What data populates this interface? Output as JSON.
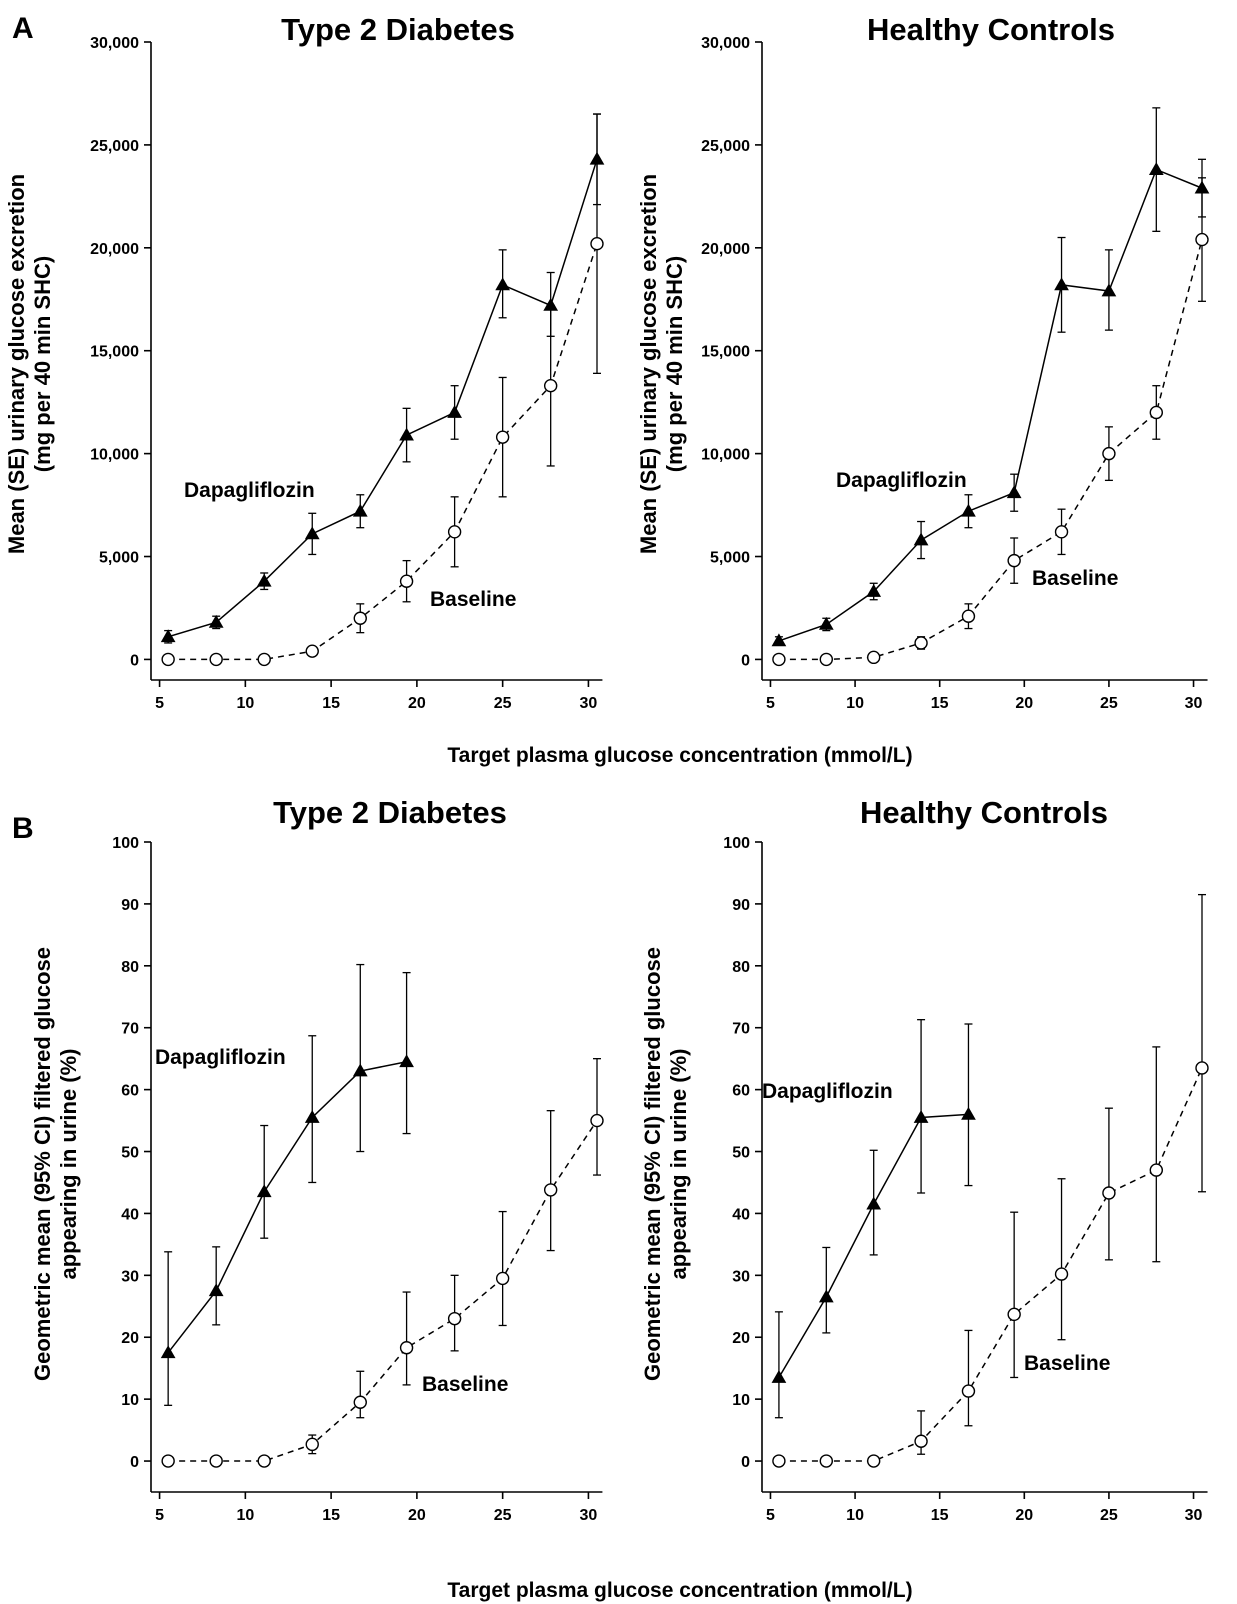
{
  "figure": {
    "panelA_label": "A",
    "panelB_label": "B",
    "xlabel_A": "Target plasma glucose concentration (mmol/L)",
    "xlabel_B": "Target plasma glucose concentration (mmol/L)",
    "ylabel_A_line1": "Mean (SE) urinary glucose excretion",
    "ylabel_A_line2": "(mg per 40 min SHC)",
    "ylabel_B_line1": "Geometric mean (95% CI) filtered glucose",
    "ylabel_B_line2": "appearing in urine (%)"
  },
  "chart_data": [
    {
      "id": "A-left",
      "type": "line",
      "title": "Type 2 Diabetes",
      "xlabel": "Target plasma glucose concentration (mmol/L)",
      "ylabel": "Mean (SE) urinary glucose excretion (mg per 40 min SHC)",
      "xlim": [
        4.5,
        30.5
      ],
      "ylim": [
        -1000,
        30000
      ],
      "xticks": [
        5,
        10,
        15,
        20,
        25,
        30
      ],
      "yticks": [
        0,
        5000,
        10000,
        15000,
        20000,
        25000,
        30000
      ],
      "ytick_labels": [
        "0",
        "5,000",
        "10,000",
        "15,000",
        "20,000",
        "25,000",
        "30,000"
      ],
      "series": [
        {
          "name": "Dapagliflozin",
          "marker": "triangle",
          "dash": "solid",
          "x": [
            5.5,
            8.3,
            11.1,
            13.9,
            16.7,
            19.4,
            22.2,
            25.0,
            27.8,
            30.5
          ],
          "y": [
            1100,
            1800,
            3800,
            6100,
            7200,
            10900,
            12000,
            18200,
            17200,
            24300
          ],
          "err": [
            [
              300,
              300
            ],
            [
              300,
              300
            ],
            [
              400,
              400
            ],
            [
              1000,
              1000
            ],
            [
              800,
              800
            ],
            [
              1300,
              1300
            ],
            [
              1300,
              1300
            ],
            [
              1600,
              1700
            ],
            [
              1500,
              1600
            ],
            [
              2200,
              2200
            ]
          ]
        },
        {
          "name": "Baseline",
          "marker": "circle",
          "dash": "dashed",
          "x": [
            5.5,
            8.3,
            11.1,
            13.9,
            16.7,
            19.4,
            22.2,
            25.0,
            27.8,
            30.5
          ],
          "y": [
            0,
            0,
            0,
            400,
            2000,
            3800,
            6200,
            10800,
            13300,
            20200
          ],
          "err": [
            [
              0,
              0
            ],
            [
              0,
              0
            ],
            [
              0,
              0
            ],
            [
              200,
              200
            ],
            [
              700,
              700
            ],
            [
              1000,
              1000
            ],
            [
              1700,
              1700
            ],
            [
              2900,
              2900
            ],
            [
              3900,
              3900
            ],
            [
              6300,
              6300
            ]
          ]
        }
      ],
      "annotations": [
        "Dapagliflozin",
        "Baseline"
      ]
    },
    {
      "id": "A-right",
      "type": "line",
      "title": "Healthy Controls",
      "xlabel": "Target plasma glucose concentration (mmol/L)",
      "ylabel": "Mean (SE) urinary glucose excretion (mg per 40 min SHC)",
      "xlim": [
        4.5,
        30.5
      ],
      "ylim": [
        -1000,
        30000
      ],
      "xticks": [
        5,
        10,
        15,
        20,
        25,
        30
      ],
      "yticks": [
        0,
        5000,
        10000,
        15000,
        20000,
        25000,
        30000
      ],
      "ytick_labels": [
        "0",
        "5,000",
        "10,000",
        "15,000",
        "20,000",
        "25,000",
        "30,000"
      ],
      "series": [
        {
          "name": "Dapagliflozin",
          "marker": "triangle",
          "dash": "solid",
          "x": [
            5.5,
            8.3,
            11.1,
            13.9,
            16.7,
            19.4,
            22.2,
            25.0,
            27.8,
            30.5
          ],
          "y": [
            900,
            1700,
            3300,
            5800,
            7200,
            8100,
            18200,
            17900,
            23800,
            22900
          ],
          "err": [
            [
              200,
              200
            ],
            [
              300,
              300
            ],
            [
              400,
              400
            ],
            [
              900,
              900
            ],
            [
              800,
              800
            ],
            [
              900,
              900
            ],
            [
              2300,
              2300
            ],
            [
              1900,
              2000
            ],
            [
              3000,
              3000
            ],
            [
              1400,
              1400
            ]
          ]
        },
        {
          "name": "Baseline",
          "marker": "circle",
          "dash": "dashed",
          "x": [
            5.5,
            8.3,
            11.1,
            13.9,
            16.7,
            19.4,
            22.2,
            25.0,
            27.8,
            30.5
          ],
          "y": [
            0,
            0,
            100,
            800,
            2100,
            4800,
            6200,
            10000,
            12000,
            20400
          ],
          "err": [
            [
              0,
              0
            ],
            [
              0,
              0
            ],
            [
              0,
              0
            ],
            [
              300,
              300
            ],
            [
              600,
              600
            ],
            [
              1100,
              1100
            ],
            [
              1100,
              1100
            ],
            [
              1300,
              1300
            ],
            [
              1300,
              1300
            ],
            [
              3000,
              3000
            ]
          ]
        }
      ],
      "annotations": [
        "Dapagliflozin",
        "Baseline"
      ]
    },
    {
      "id": "B-left",
      "type": "line",
      "title": "Type 2 Diabetes",
      "xlabel": "Target plasma glucose concentration (mmol/L)",
      "ylabel": "Geometric mean (95% CI) filtered glucose appearing in urine (%)",
      "xlim": [
        4.5,
        30.5
      ],
      "ylim": [
        -5,
        100
      ],
      "xticks": [
        5,
        10,
        15,
        20,
        25,
        30
      ],
      "yticks": [
        0,
        10,
        20,
        30,
        40,
        50,
        60,
        70,
        80,
        90,
        100
      ],
      "ytick_labels": [
        "0",
        "10",
        "20",
        "30",
        "40",
        "50",
        "60",
        "70",
        "80",
        "90",
        "100"
      ],
      "series": [
        {
          "name": "Dapagliflozin",
          "marker": "triangle",
          "dash": "solid",
          "x": [
            5.5,
            8.3,
            11.1,
            13.9,
            16.7,
            19.4
          ],
          "y": [
            17.5,
            27.5,
            43.5,
            55.5,
            63.0,
            64.5
          ],
          "err": [
            [
              8.5,
              16.3
            ],
            [
              5.5,
              7.1
            ],
            [
              7.5,
              10.7
            ],
            [
              10.5,
              13.2
            ],
            [
              13.0,
              17.2
            ],
            [
              11.6,
              14.4
            ]
          ]
        },
        {
          "name": "Baseline",
          "marker": "circle",
          "dash": "dashed",
          "x": [
            5.5,
            8.3,
            11.1,
            13.9,
            16.7,
            19.4,
            22.2,
            25.0,
            27.8,
            30.5
          ],
          "y": [
            0,
            0,
            0,
            2.7,
            9.5,
            18.3,
            23.0,
            29.5,
            43.8,
            55.0
          ],
          "err": [
            [
              0,
              0
            ],
            [
              0,
              0
            ],
            [
              0,
              0
            ],
            [
              1.5,
              1.5
            ],
            [
              2.5,
              5.0
            ],
            [
              6.0,
              9.0
            ],
            [
              5.2,
              7.0
            ],
            [
              7.6,
              10.8
            ],
            [
              9.8,
              12.8
            ],
            [
              8.8,
              10.0
            ]
          ]
        }
      ],
      "annotations": [
        "Dapagliflozin",
        "Baseline"
      ]
    },
    {
      "id": "B-right",
      "type": "line",
      "title": "Healthy Controls",
      "xlabel": "Target plasma glucose concentration (mmol/L)",
      "ylabel": "Geometric mean (95% CI) filtered glucose appearing in urine (%)",
      "xlim": [
        4.5,
        30.5
      ],
      "ylim": [
        -5,
        100
      ],
      "xticks": [
        5,
        10,
        15,
        20,
        25,
        30
      ],
      "yticks": [
        0,
        10,
        20,
        30,
        40,
        50,
        60,
        70,
        80,
        90,
        100
      ],
      "ytick_labels": [
        "0",
        "10",
        "20",
        "30",
        "40",
        "50",
        "60",
        "70",
        "80",
        "90",
        "100"
      ],
      "series": [
        {
          "name": "Dapagliflozin",
          "marker": "triangle",
          "dash": "solid",
          "x": [
            5.5,
            8.3,
            11.1,
            13.9,
            16.7
          ],
          "y": [
            13.5,
            26.5,
            41.5,
            55.5,
            56.0
          ],
          "err": [
            [
              6.5,
              10.6
            ],
            [
              5.8,
              8.0
            ],
            [
              8.2,
              8.7
            ],
            [
              12.2,
              15.8
            ],
            [
              11.5,
              14.6
            ]
          ]
        },
        {
          "name": "Baseline",
          "marker": "circle",
          "dash": "dashed",
          "x": [
            5.5,
            8.3,
            11.1,
            13.9,
            16.7,
            19.4,
            22.2,
            25.0,
            27.8,
            30.5
          ],
          "y": [
            0,
            0,
            0,
            3.2,
            11.3,
            23.7,
            30.2,
            43.3,
            47.0,
            63.5
          ],
          "err": [
            [
              0,
              0
            ],
            [
              0,
              0
            ],
            [
              0,
              0
            ],
            [
              2.1,
              4.9
            ],
            [
              5.6,
              9.8
            ],
            [
              10.2,
              16.5
            ],
            [
              10.6,
              15.4
            ],
            [
              10.8,
              13.7
            ],
            [
              14.8,
              19.9
            ],
            [
              20.0,
              28.0
            ]
          ]
        }
      ],
      "annotations": [
        "Dapagliflozin",
        "Baseline"
      ]
    }
  ]
}
